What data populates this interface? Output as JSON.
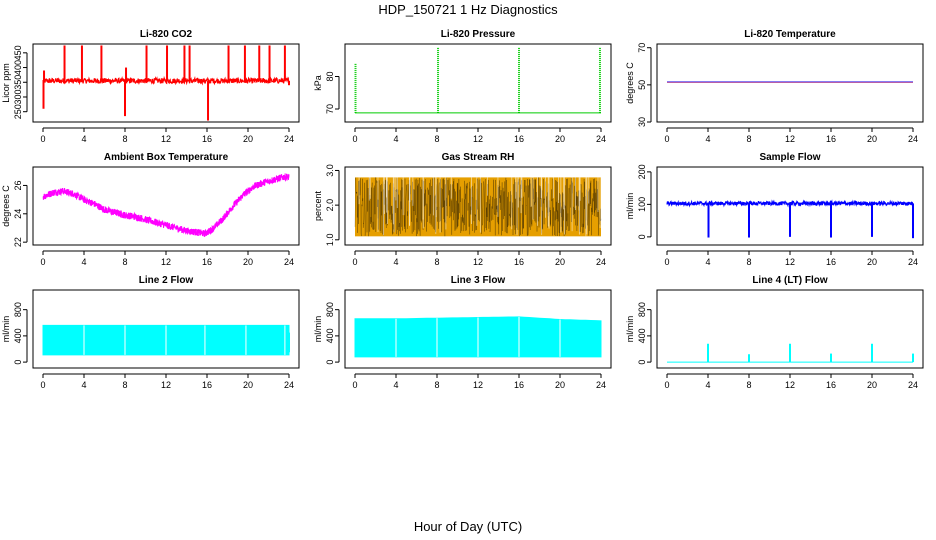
{
  "title": "HDP_150721  1 Hz Diagnostics",
  "xlabel": "Hour of Day (UTC)",
  "chart_data": [
    {
      "type": "line",
      "title": "Li-820 CO2",
      "ylabel": "Licor ppm",
      "xlim": [
        0,
        24
      ],
      "ylim": [
        215,
        480
      ],
      "xticks": [
        0,
        4,
        8,
        12,
        16,
        20,
        24
      ],
      "yticks": [
        250,
        300,
        350,
        400,
        450
      ],
      "series": [
        {
          "color": "#ff0000",
          "baseline": 355,
          "band": [
            346,
            364
          ],
          "spikes_up": [
            [
              0.1,
              390
            ],
            [
              2.1,
              475
            ],
            [
              3.8,
              475
            ],
            [
              5.7,
              475
            ],
            [
              8.1,
              400
            ],
            [
              10.1,
              475
            ],
            [
              12.1,
              475
            ],
            [
              13.8,
              475
            ],
            [
              14.3,
              475
            ],
            [
              18.1,
              475
            ],
            [
              19.7,
              475
            ],
            [
              21.1,
              475
            ],
            [
              22.1,
              475
            ],
            [
              23.6,
              475
            ]
          ],
          "spikes_down": [
            [
              0.05,
              260
            ],
            [
              8.0,
              235
            ],
            [
              16.1,
              220
            ],
            [
              24.0,
              340
            ]
          ]
        }
      ]
    },
    {
      "type": "line",
      "title": "Li-820 Pressure",
      "ylabel": "kPa",
      "xlim": [
        0,
        24
      ],
      "ylim": [
        66,
        90
      ],
      "xticks": [
        0,
        4,
        8,
        12,
        16,
        20,
        24
      ],
      "yticks": [
        70,
        80
      ],
      "series": [
        {
          "color": "#00cc00",
          "baseline": 68.8,
          "spikes_up": [
            [
              0.05,
              84
            ],
            [
              8.1,
              89
            ],
            [
              16.0,
              89
            ],
            [
              23.9,
              89
            ]
          ]
        }
      ]
    },
    {
      "type": "line",
      "title": "Li-820 Temperature",
      "ylabel": "degrees C",
      "xlim": [
        0,
        24
      ],
      "ylim": [
        30,
        72
      ],
      "xticks": [
        0,
        4,
        8,
        12,
        16,
        20,
        24
      ],
      "yticks": [
        30,
        50,
        70
      ],
      "series": [
        {
          "color": "#ff0000",
          "x": [
            0,
            24
          ],
          "y": [
            51.4,
            51.4
          ]
        },
        {
          "color": "#0000ff",
          "x": [
            0,
            24
          ],
          "y": [
            51.6,
            51.6
          ]
        }
      ]
    },
    {
      "type": "line",
      "title": "Ambient Box Temperature",
      "ylabel": "degrees C",
      "xlim": [
        0,
        24
      ],
      "ylim": [
        21.8,
        27.3
      ],
      "xticks": [
        0,
        4,
        8,
        12,
        16,
        20,
        24
      ],
      "yticks": [
        22,
        24,
        26
      ],
      "series": [
        {
          "color": "#ff00ff",
          "x": [
            0,
            1,
            2,
            3,
            4,
            5,
            6,
            7,
            8,
            9,
            10,
            11,
            12,
            13,
            14,
            15,
            15.8,
            16.5,
            17.5,
            18.5,
            19.5,
            20.5,
            21.5,
            22.5,
            23.5,
            24
          ],
          "y": [
            25.2,
            25.5,
            25.6,
            25.4,
            25.0,
            24.7,
            24.3,
            24.1,
            23.9,
            23.8,
            23.6,
            23.4,
            23.2,
            23.0,
            22.8,
            22.7,
            22.6,
            22.9,
            23.6,
            24.5,
            25.3,
            25.9,
            26.2,
            26.4,
            26.6,
            26.6
          ],
          "band": 0.25
        }
      ]
    },
    {
      "type": "area",
      "title": "Gas Stream RH",
      "ylabel": "percent",
      "xlim": [
        0,
        24
      ],
      "ylim": [
        0.85,
        3.1
      ],
      "xticks": [
        0,
        4,
        8,
        12,
        16,
        20,
        24
      ],
      "yticks": [
        1.0,
        2.0,
        3.0
      ],
      "series": [
        {
          "color": "#e69f00",
          "outline": "#000000",
          "upper": 2.8,
          "lower": 1.1
        }
      ]
    },
    {
      "type": "line",
      "title": "Sample Flow",
      "ylabel": "ml/min",
      "xlim": [
        0,
        24
      ],
      "ylim": [
        -25,
        215
      ],
      "xticks": [
        0,
        4,
        8,
        12,
        16,
        20,
        24
      ],
      "yticks": [
        0,
        100,
        200
      ],
      "series": [
        {
          "color": "#0000ff",
          "baseline": 103,
          "band": [
            97,
            109
          ],
          "spikes_down": [
            [
              4.05,
              -2
            ],
            [
              8.0,
              -2
            ],
            [
              12.0,
              0
            ],
            [
              16.0,
              -2
            ],
            [
              20.0,
              0
            ],
            [
              24.0,
              -4
            ]
          ]
        }
      ]
    },
    {
      "type": "area",
      "title": "Line 2 Flow",
      "ylabel": "ml/min",
      "xlim": [
        0,
        24
      ],
      "ylim": [
        -90,
        1100
      ],
      "xticks": [
        0,
        4,
        8,
        12,
        16,
        20,
        24
      ],
      "yticks": [
        0,
        400,
        800
      ],
      "series": [
        {
          "color": "#00ffff",
          "upper": 560,
          "lower": 110,
          "gaps": [
            4,
            8,
            12,
            15.8,
            19.8,
            23.6
          ]
        }
      ]
    },
    {
      "type": "area",
      "title": "Line 3 Flow",
      "ylabel": "ml/min",
      "xlim": [
        0,
        24
      ],
      "ylim": [
        -90,
        1100
      ],
      "xticks": [
        0,
        4,
        8,
        12,
        16,
        20,
        24
      ],
      "yticks": [
        0,
        400,
        800
      ],
      "series": [
        {
          "color": "#00ffff",
          "upper_x": [
            0,
            4,
            8,
            12,
            16,
            20,
            24
          ],
          "upper": [
            660,
            660,
            670,
            680,
            690,
            650,
            630
          ],
          "lower": 80,
          "gaps": [
            4,
            8,
            12,
            16,
            20
          ]
        }
      ]
    },
    {
      "type": "line",
      "title": "Line 4 (LT) Flow",
      "ylabel": "ml/min",
      "xlim": [
        0,
        24
      ],
      "ylim": [
        -90,
        1100
      ],
      "xticks": [
        0,
        4,
        8,
        12,
        16,
        20,
        24
      ],
      "yticks": [
        0,
        400,
        800
      ],
      "series": [
        {
          "color": "#00ffff",
          "baseline": 0,
          "spikes_up": [
            [
              4.0,
              280
            ],
            [
              8.0,
              120
            ],
            [
              12.0,
              280
            ],
            [
              16.0,
              130
            ],
            [
              20.0,
              280
            ],
            [
              24.0,
              130
            ]
          ]
        }
      ]
    }
  ]
}
